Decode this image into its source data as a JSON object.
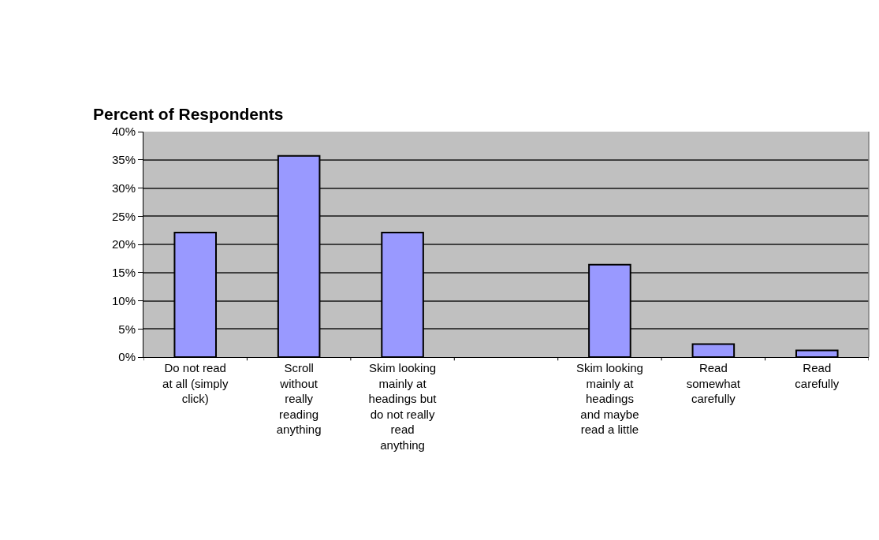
{
  "chart_data": {
    "type": "bar",
    "title": "Percent of Respondents",
    "categories": [
      "Do not read\nat all (simply\nclick)",
      "Scroll\nwithout\nreally\nreading\nanything",
      "Skim looking\nmainly at\nheadings but\ndo not really\nread\nanything",
      null,
      "Skim looking\nmainly at\nheadings\nand maybe\nread a little",
      "Read\nsomewhat\ncarefully",
      "Read\ncarefully"
    ],
    "values": [
      22.1,
      35.7,
      22.1,
      null,
      16.4,
      2.3,
      1.2
    ],
    "color": "#9999ff",
    "ylim": [
      0,
      40
    ],
    "yticks": [
      {
        "value": 0,
        "label": "0%"
      },
      {
        "value": 5,
        "label": "5%"
      },
      {
        "value": 10,
        "label": "10%"
      },
      {
        "value": 15,
        "label": "15%"
      },
      {
        "value": 20,
        "label": "20%"
      },
      {
        "value": 25,
        "label": "25%"
      },
      {
        "value": 30,
        "label": "30%"
      },
      {
        "value": 35,
        "label": "35%"
      },
      {
        "value": 40,
        "label": "40%"
      }
    ],
    "grid": "y",
    "legend": false
  }
}
